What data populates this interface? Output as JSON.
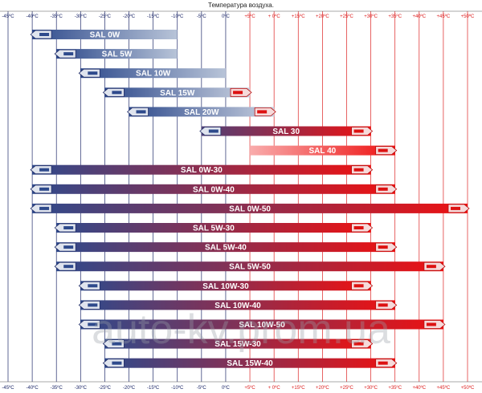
{
  "chart_data": {
    "type": "bar",
    "orientation": "horizontal-range",
    "title": "Температура воздуха.",
    "x_ticks": [
      "-45ºC",
      "-40ºC",
      "-35ºC",
      "-30ºC",
      "-25ºC",
      "-20ºC",
      "-15ºC",
      "-10ºC",
      "-5ºC",
      "0ºC",
      "+5ºC",
      "+ 0ºC",
      "+15ºC",
      "+20ºC",
      "+25ºC",
      "+30ºC",
      "+35ºC",
      "+40ºC",
      "+45ºC",
      "+50ºC"
    ],
    "xlim": [
      -45,
      50
    ],
    "grid": true,
    "colors": {
      "cold": "#2e4a8c",
      "hot": "#ee1111",
      "cold_grid": "#1f2a6a",
      "hot_grid": "#dd2222",
      "light_start": "#b8c4d8"
    },
    "series": [
      {
        "label": "SAL 0W",
        "min": -40,
        "max": -10
      },
      {
        "label": "SAL 5W",
        "min": -35,
        "max": -10
      },
      {
        "label": "SAL 10W",
        "min": -30,
        "max": 0
      },
      {
        "label": "SAL 15W",
        "min": -25,
        "max": 5
      },
      {
        "label": "SAL 20W",
        "min": -20,
        "max": 10
      },
      {
        "label": "SAL 30",
        "min": -5,
        "max": 30
      },
      {
        "label": "SAL 40",
        "min": 5,
        "max": 35
      },
      {
        "label": "SAL 0W-30",
        "min": -40,
        "max": 30
      },
      {
        "label": "SAL 0W-40",
        "min": -40,
        "max": 35
      },
      {
        "label": "SAL 0W-50",
        "min": -40,
        "max": 50
      },
      {
        "label": "SAL 5W-30",
        "min": -35,
        "max": 30
      },
      {
        "label": "SAL 5W-40",
        "min": -35,
        "max": 35
      },
      {
        "label": "SAL 5W-50",
        "min": -35,
        "max": 45
      },
      {
        "label": "SAL 10W-30",
        "min": -30,
        "max": 30
      },
      {
        "label": "SAL 10W-40",
        "min": -30,
        "max": 35
      },
      {
        "label": "SAL 10W-50",
        "min": -30,
        "max": 45
      },
      {
        "label": "SAL 15W-30",
        "min": -25,
        "max": 30
      },
      {
        "label": "SAL 15W-40",
        "min": -25,
        "max": 35
      }
    ]
  },
  "watermark": "auto-kv.prom.ua"
}
